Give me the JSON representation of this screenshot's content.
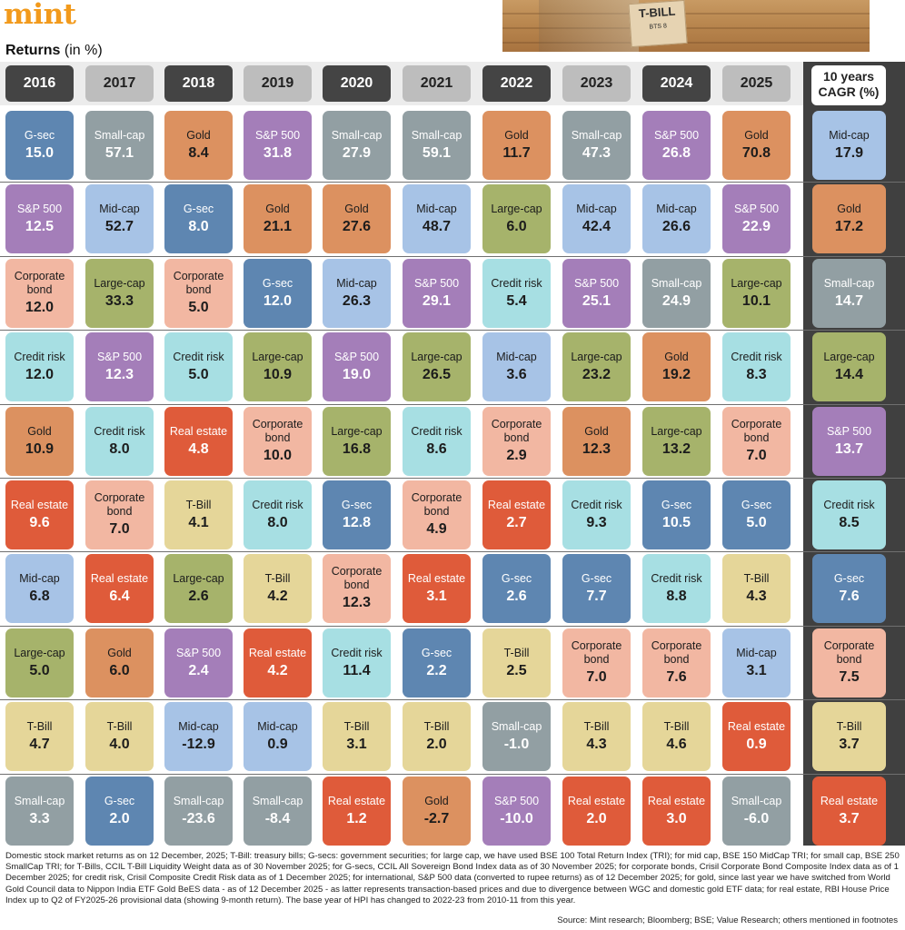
{
  "brand": {
    "logo_text": "mint"
  },
  "title": {
    "main": "Returns",
    "unit": "(in %)"
  },
  "photo": {
    "tag_text": "T-BILL",
    "tag_subtext": "BTS 8"
  },
  "cagr_header": {
    "line1": "10 years",
    "line2": "CAGR (%)"
  },
  "colors": {
    "G-sec": "#5e86b1",
    "Small-cap": "#929fa3",
    "Gold": "#dc9160",
    "S&P 500": "#a47eb9",
    "Mid-cap": "#a7c3e6",
    "Large-cap": "#a6b36b",
    "Corporate bond": "#f2b7a2",
    "Credit risk": "#a7dfe3",
    "Real estate": "#df5b3a",
    "T-Bill": "#e5d699"
  },
  "text_on_dark": [
    "G-sec",
    "Small-cap",
    "S&P 500",
    "Real estate"
  ],
  "chart_data": {
    "type": "table",
    "title": "Returns (in %)",
    "columns": [
      "2016",
      "2017",
      "2018",
      "2019",
      "2020",
      "2021",
      "2022",
      "2023",
      "2024",
      "2025",
      "10 years CAGR (%)"
    ],
    "column_style": [
      "dark",
      "light",
      "dark",
      "light",
      "dark",
      "light",
      "dark",
      "light",
      "dark",
      "light",
      "cagr"
    ],
    "rows": [
      [
        [
          "G-sec",
          "15.0"
        ],
        [
          "Small-cap",
          "57.1"
        ],
        [
          "Gold",
          "8.4"
        ],
        [
          "S&P 500",
          "31.8"
        ],
        [
          "Small-cap",
          "27.9"
        ],
        [
          "Small-cap",
          "59.1"
        ],
        [
          "Gold",
          "11.7"
        ],
        [
          "Small-cap",
          "47.3"
        ],
        [
          "S&P 500",
          "26.8"
        ],
        [
          "Gold",
          "70.8"
        ],
        [
          "Mid-cap",
          "17.9"
        ]
      ],
      [
        [
          "S&P 500",
          "12.5"
        ],
        [
          "Mid-cap",
          "52.7"
        ],
        [
          "G-sec",
          "8.0"
        ],
        [
          "Gold",
          "21.1"
        ],
        [
          "Gold",
          "27.6"
        ],
        [
          "Mid-cap",
          "48.7"
        ],
        [
          "Large-cap",
          "6.0"
        ],
        [
          "Mid-cap",
          "42.4"
        ],
        [
          "Mid-cap",
          "26.6"
        ],
        [
          "S&P 500",
          "22.9"
        ],
        [
          "Gold",
          "17.2"
        ]
      ],
      [
        [
          "Corporate bond",
          "12.0"
        ],
        [
          "Large-cap",
          "33.3"
        ],
        [
          "Corporate bond",
          "5.0"
        ],
        [
          "G-sec",
          "12.0"
        ],
        [
          "Mid-cap",
          "26.3"
        ],
        [
          "S&P 500",
          "29.1"
        ],
        [
          "Credit risk",
          "5.4"
        ],
        [
          "S&P 500",
          "25.1"
        ],
        [
          "Small-cap",
          "24.9"
        ],
        [
          "Large-cap",
          "10.1"
        ],
        [
          "Small-cap",
          "14.7"
        ]
      ],
      [
        [
          "Credit risk",
          "12.0"
        ],
        [
          "S&P 500",
          "12.3"
        ],
        [
          "Credit risk",
          "5.0"
        ],
        [
          "Large-cap",
          "10.9"
        ],
        [
          "S&P 500",
          "19.0"
        ],
        [
          "Large-cap",
          "26.5"
        ],
        [
          "Mid-cap",
          "3.6"
        ],
        [
          "Large-cap",
          "23.2"
        ],
        [
          "Gold",
          "19.2"
        ],
        [
          "Credit risk",
          "8.3"
        ],
        [
          "Large-cap",
          "14.4"
        ]
      ],
      [
        [
          "Gold",
          "10.9"
        ],
        [
          "Credit risk",
          "8.0"
        ],
        [
          "Real estate",
          "4.8"
        ],
        [
          "Corporate bond",
          "10.0"
        ],
        [
          "Large-cap",
          "16.8"
        ],
        [
          "Credit risk",
          "8.6"
        ],
        [
          "Corporate bond",
          "2.9"
        ],
        [
          "Gold",
          "12.3"
        ],
        [
          "Large-cap",
          "13.2"
        ],
        [
          "Corporate bond",
          "7.0"
        ],
        [
          "S&P 500",
          "13.7"
        ]
      ],
      [
        [
          "Real estate",
          "9.6"
        ],
        [
          "Corporate bond",
          "7.0"
        ],
        [
          "T-Bill",
          "4.1"
        ],
        [
          "Credit risk",
          "8.0"
        ],
        [
          "G-sec",
          "12.8"
        ],
        [
          "Corporate bond",
          "4.9"
        ],
        [
          "Real estate",
          "2.7"
        ],
        [
          "Credit risk",
          "9.3"
        ],
        [
          "G-sec",
          "10.5"
        ],
        [
          "G-sec",
          "5.0"
        ],
        [
          "Credit risk",
          "8.5"
        ]
      ],
      [
        [
          "Mid-cap",
          "6.8"
        ],
        [
          "Real estate",
          "6.4"
        ],
        [
          "Large-cap",
          "2.6"
        ],
        [
          "T-Bill",
          "4.2"
        ],
        [
          "Corporate bond",
          "12.3"
        ],
        [
          "Real estate",
          "3.1"
        ],
        [
          "G-sec",
          "2.6"
        ],
        [
          "G-sec",
          "7.7"
        ],
        [
          "Credit risk",
          "8.8"
        ],
        [
          "T-Bill",
          "4.3"
        ],
        [
          "G-sec",
          "7.6"
        ]
      ],
      [
        [
          "Large-cap",
          "5.0"
        ],
        [
          "Gold",
          "6.0"
        ],
        [
          "S&P 500",
          "2.4"
        ],
        [
          "Real estate",
          "4.2"
        ],
        [
          "Credit risk",
          "11.4"
        ],
        [
          "G-sec",
          "2.2"
        ],
        [
          "T-Bill",
          "2.5"
        ],
        [
          "Corporate bond",
          "7.0"
        ],
        [
          "Corporate bond",
          "7.6"
        ],
        [
          "Mid-cap",
          "3.1"
        ],
        [
          "Corporate bond",
          "7.5"
        ]
      ],
      [
        [
          "T-Bill",
          "4.7"
        ],
        [
          "T-Bill",
          "4.0"
        ],
        [
          "Mid-cap",
          "-12.9"
        ],
        [
          "Mid-cap",
          "0.9"
        ],
        [
          "T-Bill",
          "3.1"
        ],
        [
          "T-Bill",
          "2.0"
        ],
        [
          "Small-cap",
          "-1.0"
        ],
        [
          "T-Bill",
          "4.3"
        ],
        [
          "T-Bill",
          "4.6"
        ],
        [
          "Real estate",
          "0.9"
        ],
        [
          "T-Bill",
          "3.7"
        ]
      ],
      [
        [
          "Small-cap",
          "3.3"
        ],
        [
          "G-sec",
          "2.0"
        ],
        [
          "Small-cap",
          "-23.6"
        ],
        [
          "Small-cap",
          "-8.4"
        ],
        [
          "Real estate",
          "1.2"
        ],
        [
          "Gold",
          "-2.7"
        ],
        [
          "S&P 500",
          "-10.0"
        ],
        [
          "Real estate",
          "2.0"
        ],
        [
          "Real estate",
          "3.0"
        ],
        [
          "Small-cap",
          "-6.0"
        ],
        [
          "Real estate",
          "3.7"
        ]
      ]
    ]
  },
  "footnote": "Domestic stock market returns as on 12 December, 2025; T-Bill: treasury bills; G-secs: government securities; for large cap, we have used BSE 100 Total Return Index (TRI); for mid cap, BSE 150 MidCap TRI; for small cap, BSE 250 SmallCap TRI; for T-Bills, CCIL T-Bill Liquidity Weight data as of 30 November 2025; for G-secs, CCIL All Sovereign Bond Index data as of 30 November 2025; for corporate bonds, Crisil Corporate Bond Composite Index data as of 1 December 2025; for credit risk, Crisil Composite Credit Risk data as of 1 December 2025; for international, S&P 500 data (converted to rupee returns) as of 12 December 2025; for gold, since last year we have switched from World Gold Council data to Nippon India ETF Gold BeES data - as of 12 December 2025 - as latter represents transaction-based prices and due to divergence between WGC and domestic gold ETF data; for real estate, RBI House Price Index up to Q2 of FY2025-26 provisional data (showing 9-month return). The base year of HPI has changed to 2022-23 from 2010-11 from this year.",
  "source": "Source: Mint research; Bloomberg; BSE; Value Research; others mentioned in footnotes"
}
